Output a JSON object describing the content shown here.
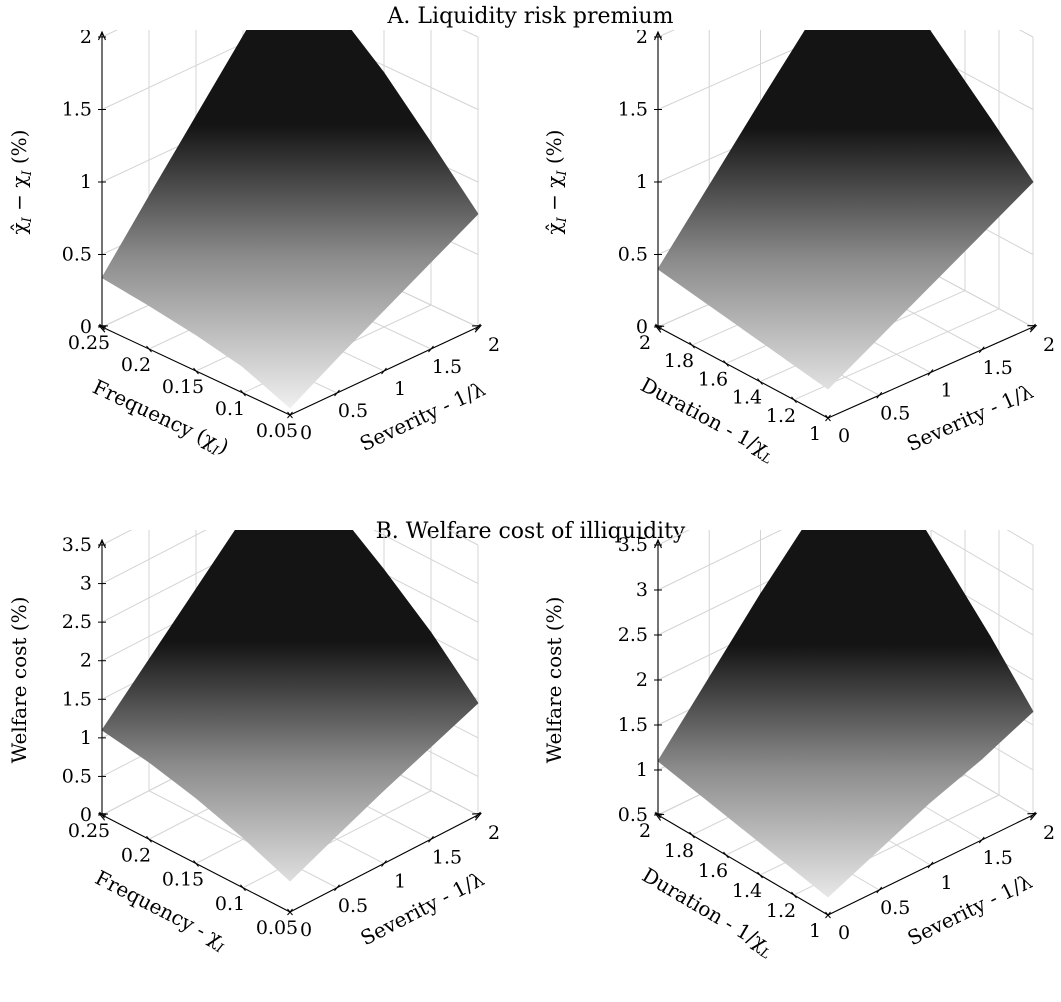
{
  "panels": {
    "A": {
      "title": "A. Liquidity risk premium"
    },
    "B": {
      "title": "B. Welfare cost of illiquidity"
    }
  },
  "chart_data": [
    {
      "type": "surface",
      "panel": "A",
      "ylabel_prefix": "χ̂",
      "ylabel_mid": " − χ",
      "ylabel_suffix": " (%)",
      "ylabel_sub": "I",
      "xlabel_left": "Frequency (χ",
      "xlabel_left_sub": "I",
      "xlabel_left_end": ")",
      "xlabel_right": "Severity - 1/λ",
      "z_ticks": [
        "0",
        "0.5",
        "1",
        "1.5",
        "2"
      ],
      "z_tick_values": [
        0,
        0.5,
        1,
        1.5,
        2
      ],
      "zlim": [
        0,
        2
      ],
      "left_ticks": [
        "0.25",
        "0.2",
        "0.15",
        "0.1",
        "0.05"
      ],
      "left_tick_values": [
        0.25,
        0.2,
        0.15,
        0.1,
        0.05
      ],
      "right_ticks": [
        "0",
        "0.5",
        "1",
        "1.5",
        "2"
      ],
      "right_tick_values": [
        0,
        0.5,
        1,
        1.5,
        2
      ],
      "surface": {
        "left_axis": [
          0.25,
          0.2,
          0.15,
          0.1,
          0.05
        ],
        "right_axis": [
          0,
          0.5,
          1,
          1.5,
          2
        ],
        "z": [
          [
            0.34,
            0.75,
            1.15,
            1.55,
            1.95
          ],
          [
            0.3,
            0.66,
            1.02,
            1.38,
            1.72
          ],
          [
            0.25,
            0.55,
            0.85,
            1.15,
            1.45
          ],
          [
            0.18,
            0.42,
            0.65,
            0.88,
            1.12
          ],
          [
            0.05,
            0.24,
            0.42,
            0.6,
            0.78
          ]
        ]
      }
    },
    {
      "type": "surface",
      "panel": "A",
      "ylabel_prefix": "χ̂",
      "ylabel_mid": " − χ",
      "ylabel_suffix": " (%)",
      "ylabel_sub": "I",
      "xlabel_left": "Duration - 1/χ",
      "xlabel_left_sub": "L",
      "xlabel_left_end": "",
      "xlabel_right": "Severity - 1/λ",
      "z_ticks": [
        "0",
        "0.5",
        "1",
        "1.5",
        "2"
      ],
      "z_tick_values": [
        0,
        0.5,
        1,
        1.5,
        2
      ],
      "zlim": [
        0,
        2
      ],
      "left_ticks": [
        "2",
        "1.8",
        "1.6",
        "1.4",
        "1.2",
        "1"
      ],
      "left_tick_values": [
        2,
        1.8,
        1.6,
        1.4,
        1.2,
        1
      ],
      "right_ticks": [
        "0",
        "0.5",
        "1",
        "1.5",
        "2"
      ],
      "right_tick_values": [
        0,
        0.5,
        1,
        1.5,
        2
      ],
      "surface": {
        "left_axis": [
          2,
          1.75,
          1.5,
          1.25,
          1
        ],
        "right_axis": [
          0,
          0.5,
          1,
          1.5,
          2
        ],
        "z": [
          [
            0.4,
            0.82,
            1.24,
            1.65,
            2.08
          ],
          [
            0.35,
            0.72,
            1.08,
            1.44,
            1.82
          ],
          [
            0.3,
            0.62,
            0.93,
            1.24,
            1.55
          ],
          [
            0.25,
            0.51,
            0.77,
            1.02,
            1.28
          ],
          [
            0.2,
            0.4,
            0.6,
            0.8,
            1.0
          ]
        ]
      }
    },
    {
      "type": "surface",
      "panel": "B",
      "ylabel_prefix": "",
      "ylabel_mid": "Welfare cost",
      "ylabel_suffix": " (%)",
      "ylabel_sub": "",
      "xlabel_left": "Frequency - χ",
      "xlabel_left_sub": "I",
      "xlabel_left_end": "",
      "xlabel_right": "Severity - 1/λ",
      "z_ticks": [
        "0",
        "0.5",
        "1",
        "1.5",
        "2",
        "2.5",
        "3",
        "3.5"
      ],
      "z_tick_values": [
        0,
        0.5,
        1,
        1.5,
        2,
        2.5,
        3,
        3.5
      ],
      "zlim": [
        0,
        3.5
      ],
      "left_ticks": [
        "0.25",
        "0.2",
        "0.15",
        "0.1",
        "0.05"
      ],
      "left_tick_values": [
        0.25,
        0.2,
        0.15,
        0.1,
        0.05
      ],
      "right_ticks": [
        "0",
        "0.5",
        "1",
        "1.5",
        "2"
      ],
      "right_tick_values": [
        0,
        0.5,
        1,
        1.5,
        2
      ],
      "surface": {
        "left_axis": [
          0.25,
          0.2,
          0.15,
          0.1,
          0.05
        ],
        "right_axis": [
          0,
          0.5,
          1,
          1.5,
          2
        ],
        "z": [
          [
            1.1,
            1.7,
            2.3,
            2.9,
            3.45
          ],
          [
            1.0,
            1.5,
            2.0,
            2.5,
            3.0
          ],
          [
            0.85,
            1.28,
            1.7,
            2.12,
            2.55
          ],
          [
            0.65,
            1.0,
            1.35,
            1.7,
            2.05
          ],
          [
            0.4,
            0.68,
            0.95,
            1.2,
            1.45
          ]
        ]
      }
    },
    {
      "type": "surface",
      "panel": "B",
      "ylabel_prefix": "",
      "ylabel_mid": "Welfare cost",
      "ylabel_suffix": " (%)",
      "ylabel_sub": "",
      "xlabel_left": "Duration - 1/χ",
      "xlabel_left_sub": "L",
      "xlabel_left_end": "",
      "xlabel_right": "Severity - 1/λ",
      "z_ticks": [
        "0.5",
        "1",
        "1.5",
        "2",
        "2.5",
        "3",
        "3.5"
      ],
      "z_tick_values": [
        0.5,
        1,
        1.5,
        2,
        2.5,
        3,
        3.5
      ],
      "zlim": [
        0.5,
        3.5
      ],
      "left_ticks": [
        "2",
        "1.8",
        "1.6",
        "1.4",
        "1.2",
        "1"
      ],
      "left_tick_values": [
        2,
        1.8,
        1.6,
        1.4,
        1.2,
        1
      ],
      "right_ticks": [
        "0",
        "0.5",
        "1",
        "1.5",
        "2"
      ],
      "right_tick_values": [
        0,
        0.5,
        1,
        1.5,
        2
      ],
      "surface": {
        "left_axis": [
          2,
          1.75,
          1.5,
          1.25,
          1
        ],
        "right_axis": [
          0,
          0.5,
          1,
          1.5,
          2
        ],
        "z": [
          [
            1.1,
            1.75,
            2.4,
            3.0,
            3.65
          ],
          [
            1.0,
            1.55,
            2.1,
            2.65,
            3.2
          ],
          [
            0.9,
            1.35,
            1.8,
            2.25,
            2.7
          ],
          [
            0.8,
            1.15,
            1.5,
            1.85,
            2.2
          ],
          [
            0.7,
            0.95,
            1.2,
            1.4,
            1.65
          ]
        ]
      }
    }
  ]
}
